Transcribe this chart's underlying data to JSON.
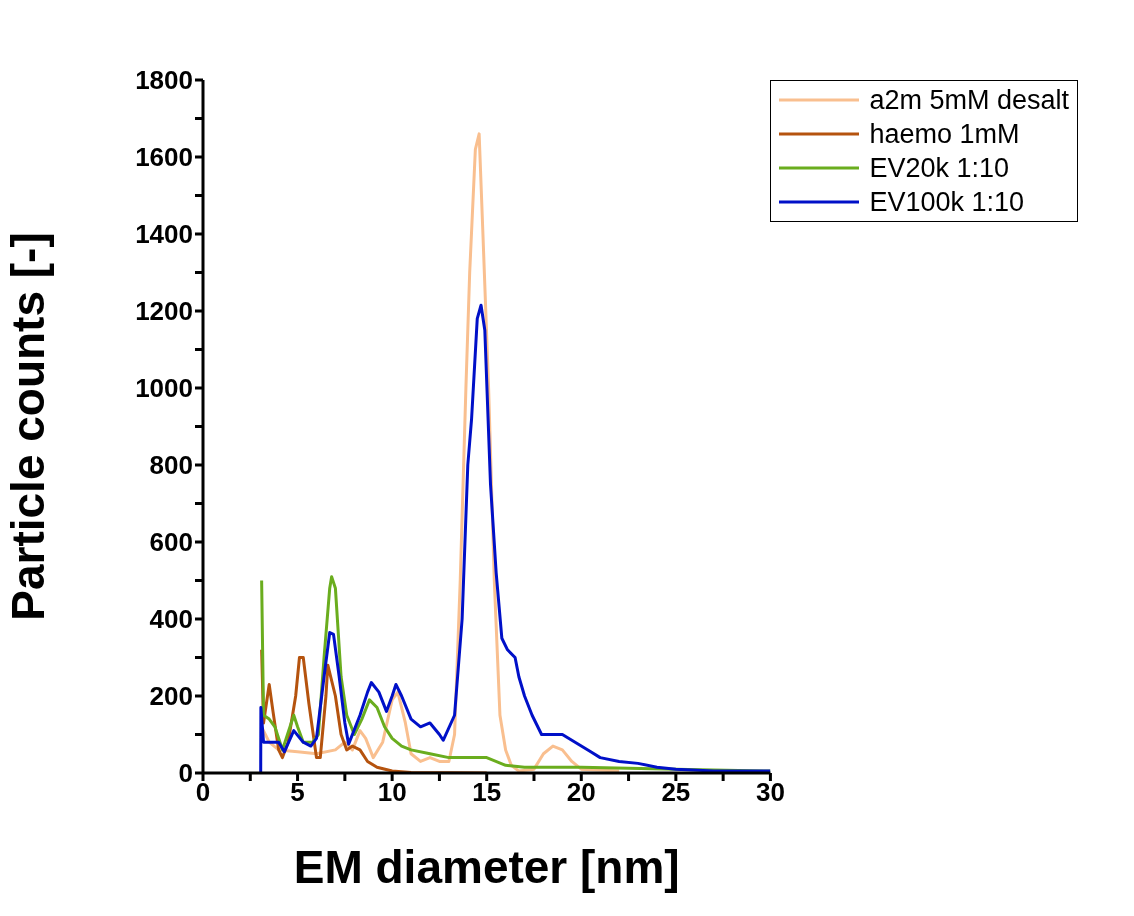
{
  "chart_data": {
    "type": "line",
    "xlabel": "EM diameter [nm]",
    "ylabel": "Particle counts [-]",
    "xlim": [
      0,
      30
    ],
    "ylim": [
      0,
      1800
    ],
    "xticks": [
      0,
      {
        "value": 2.5,
        "label": null
      },
      5,
      {
        "value": 7.5,
        "label": null
      },
      10,
      {
        "value": 12.5,
        "label": null
      },
      15,
      {
        "value": 17.5,
        "label": null
      },
      20,
      {
        "value": 22.5,
        "label": null
      },
      25,
      {
        "value": 27.5,
        "label": null
      },
      30
    ],
    "yticks": [
      0,
      {
        "value": 100,
        "label": null
      },
      200,
      {
        "value": 300,
        "label": null
      },
      400,
      {
        "value": 500,
        "label": null
      },
      600,
      {
        "value": 700,
        "label": null
      },
      800,
      {
        "value": 900,
        "label": null
      },
      1000,
      {
        "value": 1100,
        "label": null
      },
      1200,
      {
        "value": 1300,
        "label": null
      },
      1400,
      {
        "value": 1500,
        "label": null
      },
      1600,
      {
        "value": 1700,
        "label": null
      },
      1800
    ],
    "grid": false,
    "legend": "top right",
    "marker": "none",
    "line_style": "solid",
    "series": [
      {
        "name": "a2m 5mM desalt",
        "color": "#f9bf8f",
        "x": [
          3.1,
          3.5,
          4,
          5,
          6,
          7,
          7.5,
          7.9,
          8.3,
          8.6,
          9,
          9.5,
          10,
          10.3,
          10.7,
          11,
          11.5,
          12,
          12.5,
          13,
          13.3,
          13.6,
          13.9,
          14.1,
          14.4,
          14.6,
          14.8,
          15.1,
          15.4,
          15.7,
          16,
          16.3,
          16.7,
          17.5,
          18,
          18.5,
          19,
          19.5,
          20,
          22
        ],
        "values": [
          120,
          80,
          60,
          55,
          50,
          60,
          80,
          60,
          110,
          90,
          40,
          80,
          190,
          210,
          130,
          50,
          30,
          40,
          30,
          30,
          100,
          500,
          1000,
          1300,
          1620,
          1660,
          1400,
          1000,
          500,
          150,
          60,
          20,
          5,
          10,
          50,
          70,
          60,
          30,
          10,
          5
        ]
      },
      {
        "name": "haemo 1mM",
        "color": "#b5530e",
        "x": [
          3.1,
          3.2,
          3.5,
          3.7,
          4,
          4.2,
          4.5,
          4.9,
          5.1,
          5.3,
          5.6,
          6,
          6.2,
          6.5,
          6.6,
          7,
          7.3,
          7.6,
          7.9,
          8.3,
          8.7,
          9.2,
          10,
          11,
          15
        ],
        "values": [
          320,
          130,
          230,
          160,
          60,
          40,
          80,
          200,
          300,
          300,
          180,
          40,
          40,
          200,
          280,
          200,
          100,
          60,
          70,
          60,
          30,
          15,
          5,
          1,
          0
        ]
      },
      {
        "name": "EV20k 1:10",
        "color": "#6aad1e",
        "x": [
          3.1,
          3.2,
          3.5,
          3.8,
          4.2,
          4.6,
          4.8,
          5,
          5.3,
          5.8,
          6.1,
          6.4,
          6.7,
          6.8,
          7,
          7.3,
          7.6,
          8,
          8.4,
          8.8,
          9.2,
          9.6,
          10,
          10.5,
          11,
          12,
          13,
          14,
          15,
          16,
          17,
          18,
          20,
          25,
          30
        ],
        "values": [
          500,
          150,
          140,
          120,
          60,
          120,
          150,
          120,
          80,
          80,
          100,
          300,
          480,
          510,
          480,
          250,
          150,
          100,
          140,
          190,
          170,
          120,
          90,
          70,
          60,
          50,
          40,
          40,
          40,
          20,
          15,
          15,
          15,
          10,
          5
        ]
      },
      {
        "name": "EV100k 1:10",
        "color": "#0010c8",
        "x": [
          3.05,
          3.06,
          3.2,
          4,
          4.3,
          4.8,
          5.3,
          5.7,
          6,
          6.4,
          6.7,
          6.9,
          7.2,
          7.5,
          7.7,
          8.3,
          8.7,
          8.9,
          9.3,
          9.7,
          10,
          10.2,
          10.5,
          11,
          11.5,
          12,
          12.5,
          12.7,
          13.3,
          13.7,
          14,
          14.2,
          14.5,
          14.7,
          14.9,
          15.2,
          15.5,
          15.8,
          16.1,
          16.5,
          16.7,
          17,
          17.4,
          17.9,
          18.3,
          19,
          19.5,
          20,
          20.5,
          21,
          22,
          23,
          24,
          25,
          27,
          30
        ],
        "values": [
          0,
          170,
          80,
          80,
          55,
          110,
          80,
          70,
          90,
          250,
          365,
          360,
          250,
          130,
          75,
          150,
          210,
          235,
          210,
          160,
          200,
          230,
          200,
          140,
          120,
          130,
          100,
          85,
          150,
          400,
          800,
          920,
          1180,
          1215,
          1150,
          750,
          520,
          350,
          320,
          300,
          250,
          200,
          150,
          100,
          100,
          100,
          85,
          70,
          55,
          40,
          30,
          25,
          15,
          10,
          5,
          5
        ]
      }
    ]
  }
}
